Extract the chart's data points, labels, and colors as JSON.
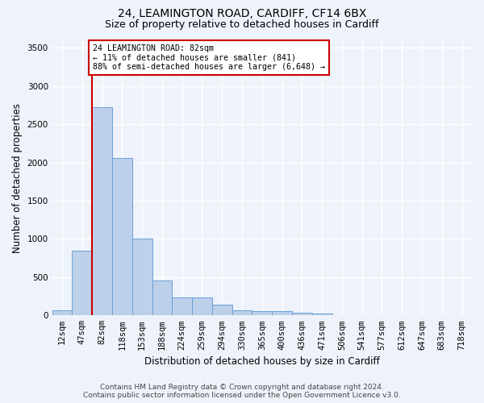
{
  "title_line1": "24, LEAMINGTON ROAD, CARDIFF, CF14 6BX",
  "title_line2": "Size of property relative to detached houses in Cardiff",
  "xlabel": "Distribution of detached houses by size in Cardiff",
  "ylabel": "Number of detached properties",
  "categories": [
    "12sqm",
    "47sqm",
    "82sqm",
    "118sqm",
    "153sqm",
    "188sqm",
    "224sqm",
    "259sqm",
    "294sqm",
    "330sqm",
    "365sqm",
    "400sqm",
    "436sqm",
    "471sqm",
    "506sqm",
    "541sqm",
    "577sqm",
    "612sqm",
    "647sqm",
    "683sqm",
    "718sqm"
  ],
  "values": [
    65,
    850,
    2720,
    2060,
    1010,
    460,
    230,
    230,
    140,
    65,
    55,
    55,
    30,
    28,
    5,
    0,
    0,
    0,
    0,
    0,
    0
  ],
  "bar_color": "#bdd0ea",
  "bar_edge_color": "#6a9fd8",
  "highlight_index": 2,
  "highlight_line_color": "#cc0000",
  "annotation_text": "24 LEAMINGTON ROAD: 82sqm\n← 11% of detached houses are smaller (841)\n88% of semi-detached houses are larger (6,648) →",
  "annotation_box_color": "#ffffff",
  "annotation_box_edge_color": "#cc0000",
  "ylim": [
    0,
    3600
  ],
  "yticks": [
    0,
    500,
    1000,
    1500,
    2000,
    2500,
    3000,
    3500
  ],
  "footer_line1": "Contains HM Land Registry data © Crown copyright and database right 2024.",
  "footer_line2": "Contains public sector information licensed under the Open Government Licence v3.0.",
  "background_color": "#eef3fb",
  "plot_bg_color": "#eef3fb",
  "grid_color": "#ffffff",
  "title_fontsize": 10,
  "subtitle_fontsize": 9,
  "label_fontsize": 8.5,
  "tick_fontsize": 7.5,
  "footer_fontsize": 6.5
}
